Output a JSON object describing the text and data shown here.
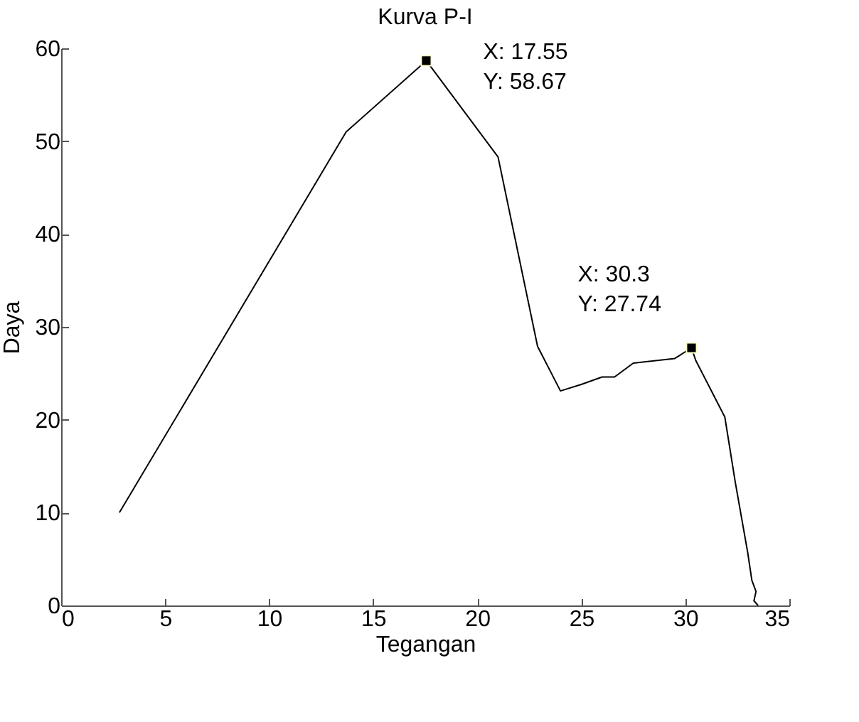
{
  "chart_data": {
    "type": "line",
    "title": "Kurva P-I",
    "xlabel": "Tegangan",
    "ylabel": "Daya",
    "x": [
      2.8,
      13.7,
      17.55,
      21.0,
      22.9,
      24.0,
      25.0,
      26.0,
      26.6,
      27.5,
      29.5,
      30.3,
      30.5,
      31.9,
      32.4,
      33.0,
      33.2,
      33.4,
      33.3,
      33.5
    ],
    "series": [
      {
        "color": "#000000",
        "values": [
          10.0,
          51.0,
          58.67,
          48.3,
          27.9,
          23.1,
          23.8,
          24.6,
          24.6,
          26.1,
          26.6,
          27.74,
          26.4,
          20.3,
          13.3,
          5.7,
          2.7,
          1.5,
          0.5,
          0
        ]
      }
    ],
    "annotations": [
      {
        "text": "X: 17.55\nY: 58.67",
        "x": 17.55,
        "y": 58.67
      },
      {
        "text": "X: 30.3\nY: 27.74",
        "x": 30.3,
        "y": 27.74
      }
    ],
    "xlim": [
      0,
      35
    ],
    "xticks": [
      0,
      5,
      10,
      15,
      20,
      25,
      30,
      35
    ],
    "ylim": [
      0,
      60
    ],
    "yticks": [
      0,
      10,
      20,
      30,
      40,
      50,
      60
    ],
    "grid": false,
    "marker": "none",
    "line_style": "solid"
  }
}
